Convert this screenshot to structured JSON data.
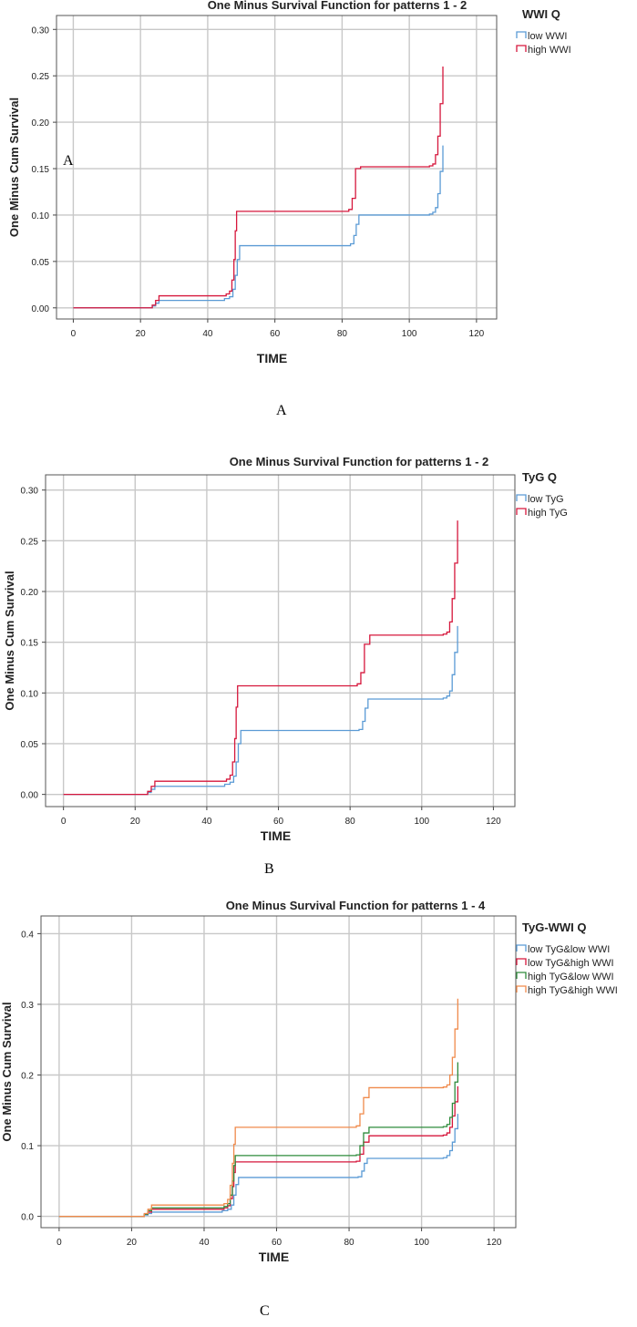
{
  "colors": {
    "blue": "#5b9bd5",
    "red": "#d6173c",
    "green": "#2e8b3b",
    "orange": "#f08a4b"
  },
  "charts": [
    {
      "caption": "A",
      "inset_label": "A",
      "chart_data": {
        "type": "line",
        "title": "One Minus Survival Function for patterns 1 - 2",
        "xlabel": "TIME",
        "ylabel": "One Minus Cum Survival",
        "xlim": [
          -5,
          126
        ],
        "ylim": [
          -0.012,
          0.315
        ],
        "xticks": [
          "0",
          "20",
          "40",
          "60",
          "80",
          "100",
          "120"
        ],
        "yticks": [
          "0.00",
          "0.05",
          "0.10",
          "0.15",
          "0.20",
          "0.25",
          "0.30"
        ],
        "legend_title": "WWI Q",
        "legend_position": "top-right",
        "series": [
          {
            "name": "low WWI",
            "color": "blue",
            "x": [
              0,
              23.5,
              24.5,
              25.5,
              45,
              46.5,
              47.5,
              48.2,
              48.8,
              49.5,
              82.5,
              83.5,
              84.2,
              85,
              106,
              107,
              107.8,
              108.5,
              109.2,
              110
            ],
            "y": [
              0,
              0.002,
              0.005,
              0.008,
              0.01,
              0.012,
              0.02,
              0.035,
              0.052,
              0.067,
              0.069,
              0.078,
              0.09,
              0.1,
              0.101,
              0.103,
              0.108,
              0.123,
              0.147,
              0.175
            ]
          },
          {
            "name": "high WWI",
            "color": "red",
            "x": [
              0,
              23.5,
              24.5,
              25.5,
              45.5,
              46.5,
              47.2,
              47.8,
              48.2,
              48.6,
              82,
              83,
              84,
              85.5,
              106,
              107,
              107.8,
              108.5,
              109.2,
              110
            ],
            "y": [
              0,
              0.003,
              0.008,
              0.013,
              0.015,
              0.018,
              0.03,
              0.052,
              0.083,
              0.104,
              0.106,
              0.118,
              0.15,
              0.152,
              0.153,
              0.155,
              0.165,
              0.185,
              0.22,
              0.26
            ]
          }
        ]
      }
    },
    {
      "caption": "B",
      "chart_data": {
        "type": "line",
        "title": "One Minus Survival Function for patterns 1 - 2",
        "xlabel": "TIME",
        "ylabel": "One Minus Cum Survival",
        "xlim": [
          -5,
          126
        ],
        "ylim": [
          -0.012,
          0.315
        ],
        "xticks": [
          "0",
          "20",
          "40",
          "60",
          "80",
          "100",
          "120"
        ],
        "yticks": [
          "0.00",
          "0.05",
          "0.10",
          "0.15",
          "0.20",
          "0.25",
          "0.30"
        ],
        "legend_title": "TyG Q",
        "legend_position": "top-right",
        "series": [
          {
            "name": "low TyG",
            "color": "blue",
            "x": [
              0,
              23.5,
              24.5,
              25.5,
              45,
              46.5,
              47.5,
              48.2,
              48.8,
              49.5,
              82.5,
              83.5,
              84.2,
              85,
              106,
              107,
              107.8,
              108.5,
              109.2,
              110
            ],
            "y": [
              0,
              0.002,
              0.005,
              0.008,
              0.01,
              0.012,
              0.018,
              0.032,
              0.05,
              0.063,
              0.064,
              0.072,
              0.085,
              0.094,
              0.095,
              0.097,
              0.102,
              0.118,
              0.14,
              0.166
            ]
          },
          {
            "name": "high TyG",
            "color": "red",
            "x": [
              0,
              23.5,
              24.5,
              25.5,
              45.5,
              46.5,
              47.2,
              47.8,
              48.2,
              48.6,
              82,
              83,
              84,
              85.5,
              106,
              107,
              107.8,
              108.5,
              109.2,
              110
            ],
            "y": [
              0,
              0.003,
              0.008,
              0.013,
              0.015,
              0.019,
              0.032,
              0.055,
              0.086,
              0.107,
              0.109,
              0.12,
              0.148,
              0.157,
              0.158,
              0.16,
              0.17,
              0.193,
              0.228,
              0.27
            ]
          }
        ]
      }
    },
    {
      "caption": "C",
      "chart_data": {
        "type": "line",
        "title": "One Minus Survival Function for patterns 1 - 4",
        "xlabel": "TIME",
        "ylabel": "One Minus Cum Survival",
        "xlim": [
          -5,
          126
        ],
        "ylim": [
          -0.016,
          0.425
        ],
        "xticks": [
          "0",
          "20",
          "40",
          "60",
          "80",
          "100",
          "120"
        ],
        "yticks": [
          "0.0",
          "0.1",
          "0.2",
          "0.3",
          "0.4"
        ],
        "legend_title": "TyG-WWI Q",
        "legend_position": "top-right",
        "series": [
          {
            "name": "low TyG&low WWI",
            "color": "blue",
            "x": [
              0,
              23.5,
              24.5,
              25.5,
              45,
              46.5,
              47.5,
              48.2,
              48.8,
              49.5,
              82.5,
              83.5,
              84.2,
              85,
              106,
              107,
              107.8,
              108.5,
              109.2,
              110
            ],
            "y": [
              0,
              0.002,
              0.004,
              0.006,
              0.008,
              0.01,
              0.016,
              0.03,
              0.045,
              0.055,
              0.056,
              0.064,
              0.075,
              0.082,
              0.083,
              0.086,
              0.093,
              0.105,
              0.124,
              0.145
            ]
          },
          {
            "name": "low TyG&high WWI",
            "color": "red",
            "x": [
              0,
              23.5,
              24.5,
              25.5,
              45.5,
              46.5,
              47.2,
              47.8,
              48.2,
              48.6,
              82,
              83,
              84,
              85.5,
              106,
              107,
              107.8,
              108.5,
              109.2,
              110
            ],
            "y": [
              0,
              0.003,
              0.006,
              0.01,
              0.012,
              0.015,
              0.025,
              0.042,
              0.062,
              0.077,
              0.078,
              0.088,
              0.105,
              0.114,
              0.115,
              0.118,
              0.126,
              0.142,
              0.162,
              0.184
            ]
          },
          {
            "name": "high TyG&low WWI",
            "color": "green",
            "x": [
              0,
              23.5,
              24.5,
              25.5,
              45.5,
              46.5,
              47.2,
              47.8,
              48.2,
              48.6,
              82,
              83,
              84,
              85.5,
              106,
              107,
              107.8,
              108.5,
              109.2,
              110
            ],
            "y": [
              0,
              0.003,
              0.008,
              0.012,
              0.014,
              0.018,
              0.03,
              0.05,
              0.072,
              0.086,
              0.087,
              0.1,
              0.118,
              0.126,
              0.127,
              0.13,
              0.14,
              0.16,
              0.19,
              0.218
            ]
          },
          {
            "name": "high TyG&high WWI",
            "color": "orange",
            "x": [
              0,
              23.5,
              24.5,
              25.5,
              45.5,
              46.5,
              47.2,
              47.8,
              48.2,
              48.6,
              82,
              83,
              84,
              85.5,
              106,
              107,
              107.8,
              108.5,
              109.2,
              110
            ],
            "y": [
              0,
              0.004,
              0.01,
              0.016,
              0.018,
              0.024,
              0.044,
              0.075,
              0.102,
              0.126,
              0.128,
              0.145,
              0.168,
              0.182,
              0.183,
              0.186,
              0.2,
              0.225,
              0.265,
              0.308
            ]
          }
        ]
      }
    }
  ]
}
